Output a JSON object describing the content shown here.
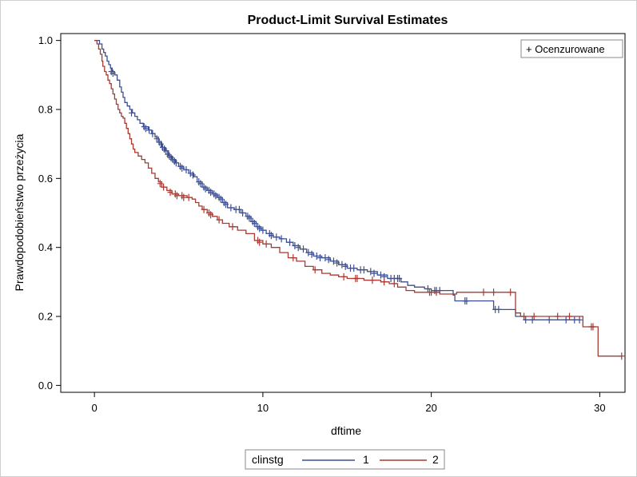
{
  "chart_data": {
    "type": "line",
    "step": true,
    "title": "Product-Limit Survival Estimates",
    "xlabel": "dftime",
    "ylabel": "Prawdopodobieństwo przeżycia",
    "xlim": [
      -2,
      31.5
    ],
    "ylim": [
      -0.02,
      1.02
    ],
    "xticks": [
      0,
      10,
      20,
      30
    ],
    "yticks": [
      0.0,
      0.2,
      0.4,
      0.6,
      0.8,
      1.0
    ],
    "ytick_labels": [
      "0.0",
      "0.2",
      "0.4",
      "0.6",
      "0.8",
      "1.0"
    ],
    "grid": false,
    "censored_legend": "+ Ocenzurowane",
    "legend": {
      "title": "clinstg",
      "placement": "bottom"
    },
    "series": [
      {
        "name": "1",
        "color": "#3c4f92",
        "points": [
          [
            0,
            1.0
          ],
          [
            0.2,
            1.0
          ],
          [
            0.3,
            0.99
          ],
          [
            0.45,
            0.975
          ],
          [
            0.55,
            0.965
          ],
          [
            0.65,
            0.955
          ],
          [
            0.75,
            0.94
          ],
          [
            0.85,
            0.93
          ],
          [
            0.95,
            0.92
          ],
          [
            1.05,
            0.91
          ],
          [
            1.2,
            0.9
          ],
          [
            1.35,
            0.885
          ],
          [
            1.5,
            0.865
          ],
          [
            1.6,
            0.85
          ],
          [
            1.7,
            0.835
          ],
          [
            1.8,
            0.82
          ],
          [
            1.95,
            0.81
          ],
          [
            2.1,
            0.8
          ],
          [
            2.25,
            0.79
          ],
          [
            2.4,
            0.78
          ],
          [
            2.55,
            0.77
          ],
          [
            2.7,
            0.76
          ],
          [
            2.9,
            0.75
          ],
          [
            3.2,
            0.74
          ],
          [
            3.4,
            0.73
          ],
          [
            3.6,
            0.72
          ],
          [
            3.8,
            0.705
          ],
          [
            4.0,
            0.69
          ],
          [
            4.2,
            0.68
          ],
          [
            4.4,
            0.665
          ],
          [
            4.6,
            0.655
          ],
          [
            4.8,
            0.645
          ],
          [
            5.0,
            0.635
          ],
          [
            5.3,
            0.625
          ],
          [
            5.6,
            0.615
          ],
          [
            5.9,
            0.605
          ],
          [
            6.1,
            0.59
          ],
          [
            6.4,
            0.575
          ],
          [
            6.7,
            0.565
          ],
          [
            7.0,
            0.555
          ],
          [
            7.3,
            0.545
          ],
          [
            7.6,
            0.53
          ],
          [
            7.9,
            0.515
          ],
          [
            8.3,
            0.51
          ],
          [
            8.7,
            0.5
          ],
          [
            9.0,
            0.49
          ],
          [
            9.3,
            0.475
          ],
          [
            9.6,
            0.46
          ],
          [
            9.9,
            0.45
          ],
          [
            10.2,
            0.44
          ],
          [
            10.6,
            0.43
          ],
          [
            11.0,
            0.425
          ],
          [
            11.4,
            0.415
          ],
          [
            11.8,
            0.405
          ],
          [
            12.2,
            0.395
          ],
          [
            12.6,
            0.385
          ],
          [
            13.0,
            0.375
          ],
          [
            13.5,
            0.37
          ],
          [
            14.0,
            0.36
          ],
          [
            14.5,
            0.35
          ],
          [
            15.0,
            0.34
          ],
          [
            15.6,
            0.335
          ],
          [
            16.2,
            0.33
          ],
          [
            16.8,
            0.32
          ],
          [
            17.4,
            0.31
          ],
          [
            18.2,
            0.3
          ],
          [
            18.6,
            0.29
          ],
          [
            19.0,
            0.285
          ],
          [
            19.6,
            0.28
          ],
          [
            20.0,
            0.275
          ],
          [
            21.3,
            0.262
          ],
          [
            21.4,
            0.245
          ],
          [
            23.0,
            0.245
          ],
          [
            23.7,
            0.22
          ],
          [
            24.8,
            0.22
          ],
          [
            25.0,
            0.2
          ],
          [
            25.5,
            0.19
          ],
          [
            28.8,
            0.19
          ]
        ],
        "censored": [
          [
            1.0,
            0.91
          ],
          [
            1.1,
            0.905
          ],
          [
            2.2,
            0.79
          ],
          [
            2.95,
            0.75
          ],
          [
            3.05,
            0.745
          ],
          [
            3.25,
            0.74
          ],
          [
            3.45,
            0.73
          ],
          [
            3.7,
            0.715
          ],
          [
            3.85,
            0.705
          ],
          [
            3.95,
            0.7
          ],
          [
            4.05,
            0.69
          ],
          [
            4.15,
            0.685
          ],
          [
            4.25,
            0.68
          ],
          [
            4.35,
            0.67
          ],
          [
            4.45,
            0.665
          ],
          [
            4.55,
            0.66
          ],
          [
            4.65,
            0.655
          ],
          [
            4.75,
            0.65
          ],
          [
            4.85,
            0.645
          ],
          [
            5.1,
            0.635
          ],
          [
            5.2,
            0.63
          ],
          [
            5.45,
            0.625
          ],
          [
            5.7,
            0.615
          ],
          [
            5.85,
            0.61
          ],
          [
            6.2,
            0.59
          ],
          [
            6.3,
            0.585
          ],
          [
            6.5,
            0.575
          ],
          [
            6.6,
            0.57
          ],
          [
            6.8,
            0.565
          ],
          [
            6.9,
            0.56
          ],
          [
            7.1,
            0.555
          ],
          [
            7.2,
            0.55
          ],
          [
            7.4,
            0.545
          ],
          [
            7.5,
            0.54
          ],
          [
            7.7,
            0.53
          ],
          [
            7.8,
            0.525
          ],
          [
            8.1,
            0.515
          ],
          [
            8.4,
            0.51
          ],
          [
            8.6,
            0.51
          ],
          [
            8.8,
            0.5
          ],
          [
            9.1,
            0.49
          ],
          [
            9.2,
            0.485
          ],
          [
            9.4,
            0.475
          ],
          [
            9.5,
            0.47
          ],
          [
            9.7,
            0.46
          ],
          [
            9.8,
            0.455
          ],
          [
            10.0,
            0.45
          ],
          [
            10.4,
            0.44
          ],
          [
            10.5,
            0.435
          ],
          [
            10.8,
            0.43
          ],
          [
            11.1,
            0.425
          ],
          [
            11.6,
            0.415
          ],
          [
            11.9,
            0.405
          ],
          [
            12.1,
            0.4
          ],
          [
            12.4,
            0.395
          ],
          [
            12.7,
            0.385
          ],
          [
            12.9,
            0.38
          ],
          [
            13.2,
            0.375
          ],
          [
            13.4,
            0.37
          ],
          [
            13.7,
            0.37
          ],
          [
            13.9,
            0.365
          ],
          [
            14.2,
            0.36
          ],
          [
            14.4,
            0.355
          ],
          [
            14.7,
            0.35
          ],
          [
            14.9,
            0.345
          ],
          [
            15.2,
            0.34
          ],
          [
            15.4,
            0.34
          ],
          [
            15.8,
            0.335
          ],
          [
            16.0,
            0.335
          ],
          [
            16.4,
            0.33
          ],
          [
            16.6,
            0.325
          ],
          [
            17.0,
            0.32
          ],
          [
            17.2,
            0.315
          ],
          [
            17.6,
            0.31
          ],
          [
            17.8,
            0.31
          ],
          [
            18.0,
            0.31
          ],
          [
            18.1,
            0.31
          ],
          [
            19.8,
            0.28
          ],
          [
            20.2,
            0.275
          ],
          [
            20.3,
            0.275
          ],
          [
            20.5,
            0.275
          ],
          [
            22.0,
            0.245
          ],
          [
            22.1,
            0.245
          ],
          [
            23.8,
            0.22
          ],
          [
            24.0,
            0.22
          ],
          [
            25.6,
            0.19
          ],
          [
            26.0,
            0.19
          ],
          [
            27.0,
            0.19
          ],
          [
            28.0,
            0.19
          ],
          [
            28.5,
            0.19
          ],
          [
            28.8,
            0.19
          ]
        ]
      },
      {
        "name": "2",
        "color": "#a83a32",
        "points": [
          [
            0,
            1.0
          ],
          [
            0.15,
            0.99
          ],
          [
            0.25,
            0.975
          ],
          [
            0.35,
            0.96
          ],
          [
            0.45,
            0.94
          ],
          [
            0.5,
            0.925
          ],
          [
            0.6,
            0.91
          ],
          [
            0.7,
            0.9
          ],
          [
            0.8,
            0.885
          ],
          [
            0.9,
            0.875
          ],
          [
            1.0,
            0.86
          ],
          [
            1.1,
            0.845
          ],
          [
            1.2,
            0.83
          ],
          [
            1.3,
            0.815
          ],
          [
            1.4,
            0.8
          ],
          [
            1.5,
            0.79
          ],
          [
            1.6,
            0.78
          ],
          [
            1.7,
            0.775
          ],
          [
            1.8,
            0.76
          ],
          [
            1.9,
            0.745
          ],
          [
            2.0,
            0.73
          ],
          [
            2.1,
            0.715
          ],
          [
            2.2,
            0.7
          ],
          [
            2.3,
            0.685
          ],
          [
            2.4,
            0.675
          ],
          [
            2.6,
            0.665
          ],
          [
            2.8,
            0.655
          ],
          [
            3.0,
            0.645
          ],
          [
            3.2,
            0.63
          ],
          [
            3.4,
            0.615
          ],
          [
            3.6,
            0.6
          ],
          [
            3.8,
            0.59
          ],
          [
            4.0,
            0.575
          ],
          [
            4.3,
            0.565
          ],
          [
            4.6,
            0.555
          ],
          [
            5.0,
            0.55
          ],
          [
            5.5,
            0.545
          ],
          [
            5.8,
            0.54
          ],
          [
            6.0,
            0.53
          ],
          [
            6.2,
            0.52
          ],
          [
            6.4,
            0.51
          ],
          [
            6.7,
            0.5
          ],
          [
            7.0,
            0.49
          ],
          [
            7.3,
            0.48
          ],
          [
            7.6,
            0.47
          ],
          [
            8.0,
            0.46
          ],
          [
            8.5,
            0.45
          ],
          [
            9.0,
            0.44
          ],
          [
            9.5,
            0.42
          ],
          [
            10.0,
            0.41
          ],
          [
            10.5,
            0.4
          ],
          [
            11.0,
            0.385
          ],
          [
            11.5,
            0.37
          ],
          [
            12.0,
            0.36
          ],
          [
            12.5,
            0.345
          ],
          [
            13.0,
            0.335
          ],
          [
            13.5,
            0.325
          ],
          [
            14.0,
            0.32
          ],
          [
            14.5,
            0.315
          ],
          [
            15.0,
            0.31
          ],
          [
            16.0,
            0.305
          ],
          [
            17.0,
            0.3
          ],
          [
            17.5,
            0.295
          ],
          [
            18.0,
            0.285
          ],
          [
            18.5,
            0.275
          ],
          [
            19.0,
            0.27
          ],
          [
            20.5,
            0.265
          ],
          [
            21.5,
            0.27
          ],
          [
            24.8,
            0.27
          ],
          [
            25.0,
            0.21
          ],
          [
            25.3,
            0.2
          ],
          [
            28.5,
            0.2
          ],
          [
            29.0,
            0.17
          ],
          [
            29.8,
            0.17
          ],
          [
            29.9,
            0.085
          ],
          [
            31.3,
            0.085
          ]
        ],
        "censored": [
          [
            3.9,
            0.585
          ],
          [
            4.1,
            0.575
          ],
          [
            4.5,
            0.56
          ],
          [
            4.8,
            0.555
          ],
          [
            4.9,
            0.55
          ],
          [
            5.2,
            0.55
          ],
          [
            5.3,
            0.545
          ],
          [
            5.6,
            0.545
          ],
          [
            6.5,
            0.51
          ],
          [
            6.8,
            0.5
          ],
          [
            6.9,
            0.495
          ],
          [
            7.4,
            0.48
          ],
          [
            8.2,
            0.46
          ],
          [
            9.7,
            0.42
          ],
          [
            9.8,
            0.415
          ],
          [
            10.2,
            0.41
          ],
          [
            11.8,
            0.37
          ],
          [
            13.1,
            0.335
          ],
          [
            14.8,
            0.315
          ],
          [
            15.5,
            0.31
          ],
          [
            15.6,
            0.31
          ],
          [
            16.5,
            0.305
          ],
          [
            17.2,
            0.3
          ],
          [
            17.8,
            0.295
          ],
          [
            19.9,
            0.27
          ],
          [
            20.0,
            0.27
          ],
          [
            20.3,
            0.27
          ],
          [
            23.1,
            0.27
          ],
          [
            23.7,
            0.27
          ],
          [
            24.7,
            0.27
          ],
          [
            25.5,
            0.2
          ],
          [
            26.1,
            0.2
          ],
          [
            27.5,
            0.2
          ],
          [
            28.2,
            0.2
          ],
          [
            29.5,
            0.17
          ],
          [
            29.6,
            0.17
          ],
          [
            31.3,
            0.085
          ]
        ]
      }
    ]
  }
}
